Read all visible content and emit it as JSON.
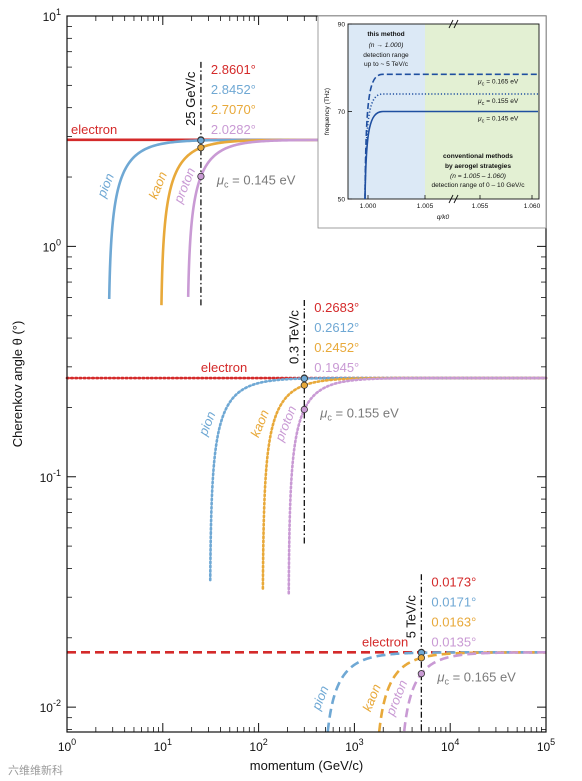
{
  "chart_data": {
    "type": "line",
    "xlabel": "momentum (GeV/c)",
    "ylabel": "Cherenkov angle θ (°)",
    "xscale": "log",
    "yscale": "log",
    "xlim": [
      1,
      100000
    ],
    "ylim": [
      0.0078,
      10
    ],
    "x_ticks": [
      {
        "v": 1,
        "m": "10",
        "e": "0"
      },
      {
        "v": 10,
        "m": "10",
        "e": "1"
      },
      {
        "v": 100,
        "m": "10",
        "e": "2"
      },
      {
        "v": 1000,
        "m": "10",
        "e": "3"
      },
      {
        "v": 10000,
        "m": "10",
        "e": "4"
      },
      {
        "v": 100000,
        "m": "10",
        "e": "5"
      }
    ],
    "y_ticks": [
      {
        "v": 10,
        "m": "10",
        "e": "1"
      },
      {
        "v": 1,
        "m": "10",
        "e": "0"
      },
      {
        "v": 0.1,
        "m": "10",
        "e": "-1"
      },
      {
        "v": 0.01,
        "m": "10",
        "e": "-2"
      }
    ],
    "colors": {
      "electron": "#d42a2a",
      "pion": "#6fa8d4",
      "kaon": "#e8a93a",
      "proton": "#c99ad4",
      "marker": "#4a4a4a"
    },
    "groups": [
      {
        "dash": "solid",
        "mu_label": "μc = 0.145 eV",
        "momentum_label": "25 GeV/c",
        "p_marker": 25,
        "theta_max": 2.9,
        "electron_label": "electron",
        "particles": [
          {
            "name": "pion",
            "threshold_p": 2.7,
            "value": "2.8452°"
          },
          {
            "name": "kaon",
            "threshold_p": 9.5,
            "value": "2.7070°"
          },
          {
            "name": "proton",
            "threshold_p": 18,
            "value": "2.0282°"
          }
        ],
        "electron_value": "2.8601°"
      },
      {
        "dash": "dotted",
        "mu_label": "μc = 0.155 eV",
        "momentum_label": "0.3 TeV/c",
        "p_marker": 300,
        "theta_max": 0.2683,
        "electron_label": "electron",
        "particles": [
          {
            "name": "pion",
            "threshold_p": 31,
            "value": "0.2612°"
          },
          {
            "name": "kaon",
            "threshold_p": 110,
            "value": "0.2452°"
          },
          {
            "name": "proton",
            "threshold_p": 205,
            "value": "0.1945°"
          }
        ],
        "electron_value": "0.2683°"
      },
      {
        "dash": "dashed",
        "mu_label": "μc = 0.165 eV",
        "momentum_label": "5 TeV/c",
        "p_marker": 5000,
        "theta_max": 0.0173,
        "electron_label": "electron",
        "particles": [
          {
            "name": "pion",
            "threshold_p": 470,
            "value": "0.0171°"
          },
          {
            "name": "kaon",
            "threshold_p": 1620,
            "value": "0.0163°"
          },
          {
            "name": "proton",
            "threshold_p": 2950,
            "value": "0.0135°"
          }
        ],
        "electron_value": "0.0173°"
      }
    ],
    "inset": {
      "type": "line",
      "xlabel": "q/k0",
      "ylabel": "frequency (THz)",
      "y_ticks": [
        50,
        70,
        90
      ],
      "x_ticks_left": [
        "1.000",
        "1.005"
      ],
      "x_ticks_right": [
        "1.055",
        "1.060"
      ],
      "curves": [
        {
          "style": "dashed",
          "label": "μc = 0.165 eV",
          "plateau_THz": 78.5
        },
        {
          "style": "dotted",
          "label": "μc = 0.155 eV",
          "plateau_THz": 74.0
        },
        {
          "style": "solid",
          "label": "μc = 0.145 eV",
          "plateau_THz": 70.0
        }
      ],
      "this_method": {
        "title": "this method",
        "n": "(n → 1.000)",
        "range1": "detection range",
        "range2": "up to ~ 5 TeV/c"
      },
      "conventional": {
        "title1": "conventional methods",
        "title2": "by aerogel strategies",
        "n": "(n = 1.005 – 1.060)",
        "range": "detection range of 0 – 10 GeV/c"
      }
    }
  },
  "watermark": "六维维新科"
}
